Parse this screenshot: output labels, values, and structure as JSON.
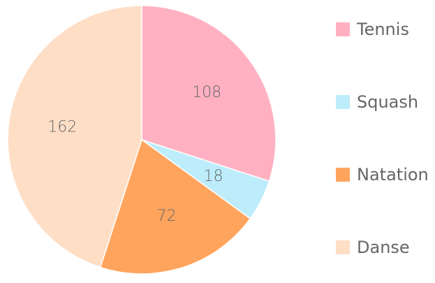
{
  "chart_data": {
    "type": "pie",
    "title": "",
    "legend_position": "right",
    "slices": [
      {
        "label": "Tennis",
        "value": 108,
        "color": "#ffb1c1"
      },
      {
        "label": "Squash",
        "value": 18,
        "color": "#bdecfb"
      },
      {
        "label": "Natation",
        "value": 72,
        "color": "#ffa45d"
      },
      {
        "label": "Danse",
        "value": 162,
        "color": "#ffdec6"
      }
    ]
  }
}
